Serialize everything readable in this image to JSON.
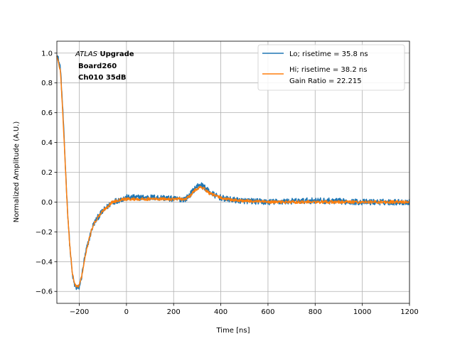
{
  "chart_data": {
    "type": "line",
    "xlabel": "Time [ns]",
    "ylabel": "Normalized Amplitude (A.U.)",
    "xlim": [
      -295,
      1200
    ],
    "ylim": [
      -0.68,
      1.08
    ],
    "xticks": [
      -200,
      0,
      200,
      400,
      600,
      800,
      1000,
      1200
    ],
    "yticks": [
      -0.6,
      -0.4,
      -0.2,
      0.0,
      0.2,
      0.4,
      0.6,
      0.8,
      1.0
    ],
    "xtick_labels": [
      "−200",
      "0",
      "200",
      "400",
      "600",
      "800",
      "1000",
      "1200"
    ],
    "ytick_labels": [
      "−0.6",
      "−0.4",
      "−0.2",
      "0.0",
      "0.2",
      "0.4",
      "0.6",
      "0.8",
      "1.0"
    ],
    "grid": true,
    "legend_position": "top-right",
    "annotation": {
      "line1_italic": "ATLAS",
      "line1_bold": " Upgrade",
      "line2": "Board260",
      "line3": "Ch010 35dB"
    },
    "series": [
      {
        "name": "Lo; risetime = 35.8 ns",
        "color": "#1f77b4",
        "noise": 0.02,
        "x": [
          -295,
          -280,
          -270,
          -260,
          -250,
          -240,
          -230,
          -220,
          -210,
          -200,
          -190,
          -180,
          -170,
          -160,
          -150,
          -140,
          -120,
          -100,
          -80,
          -60,
          -40,
          -20,
          0,
          40,
          100,
          150,
          200,
          250,
          270,
          290,
          310,
          330,
          350,
          380,
          420,
          480,
          600,
          800,
          1000,
          1200
        ],
        "y": [
          1.0,
          0.9,
          0.62,
          0.28,
          -0.05,
          -0.3,
          -0.48,
          -0.56,
          -0.58,
          -0.57,
          -0.5,
          -0.4,
          -0.32,
          -0.26,
          -0.2,
          -0.15,
          -0.1,
          -0.06,
          -0.03,
          0.0,
          0.01,
          0.02,
          0.03,
          0.03,
          0.03,
          0.03,
          0.02,
          0.02,
          0.05,
          0.09,
          0.12,
          0.1,
          0.07,
          0.04,
          0.02,
          0.01,
          0.0,
          0.01,
          0.0,
          0.0
        ]
      },
      {
        "name": "Hi; risetime = 38.2 ns\n Gain Ratio = 22.215",
        "color": "#ff7f0e",
        "noise": 0.01,
        "x": [
          -295,
          -280,
          -270,
          -260,
          -250,
          -240,
          -230,
          -220,
          -210,
          -200,
          -190,
          -180,
          -170,
          -160,
          -150,
          -140,
          -120,
          -100,
          -80,
          -60,
          -40,
          -20,
          0,
          40,
          100,
          150,
          200,
          250,
          270,
          290,
          310,
          330,
          350,
          380,
          420,
          480,
          600,
          800,
          1000,
          1200
        ],
        "y": [
          0.98,
          0.88,
          0.6,
          0.27,
          -0.06,
          -0.3,
          -0.47,
          -0.55,
          -0.57,
          -0.56,
          -0.5,
          -0.41,
          -0.33,
          -0.26,
          -0.2,
          -0.15,
          -0.1,
          -0.06,
          -0.03,
          0.0,
          0.01,
          0.02,
          0.02,
          0.02,
          0.02,
          0.02,
          0.02,
          0.02,
          0.04,
          0.08,
          0.1,
          0.09,
          0.06,
          0.04,
          0.02,
          0.01,
          0.0,
          0.0,
          0.0,
          0.0
        ]
      }
    ]
  }
}
